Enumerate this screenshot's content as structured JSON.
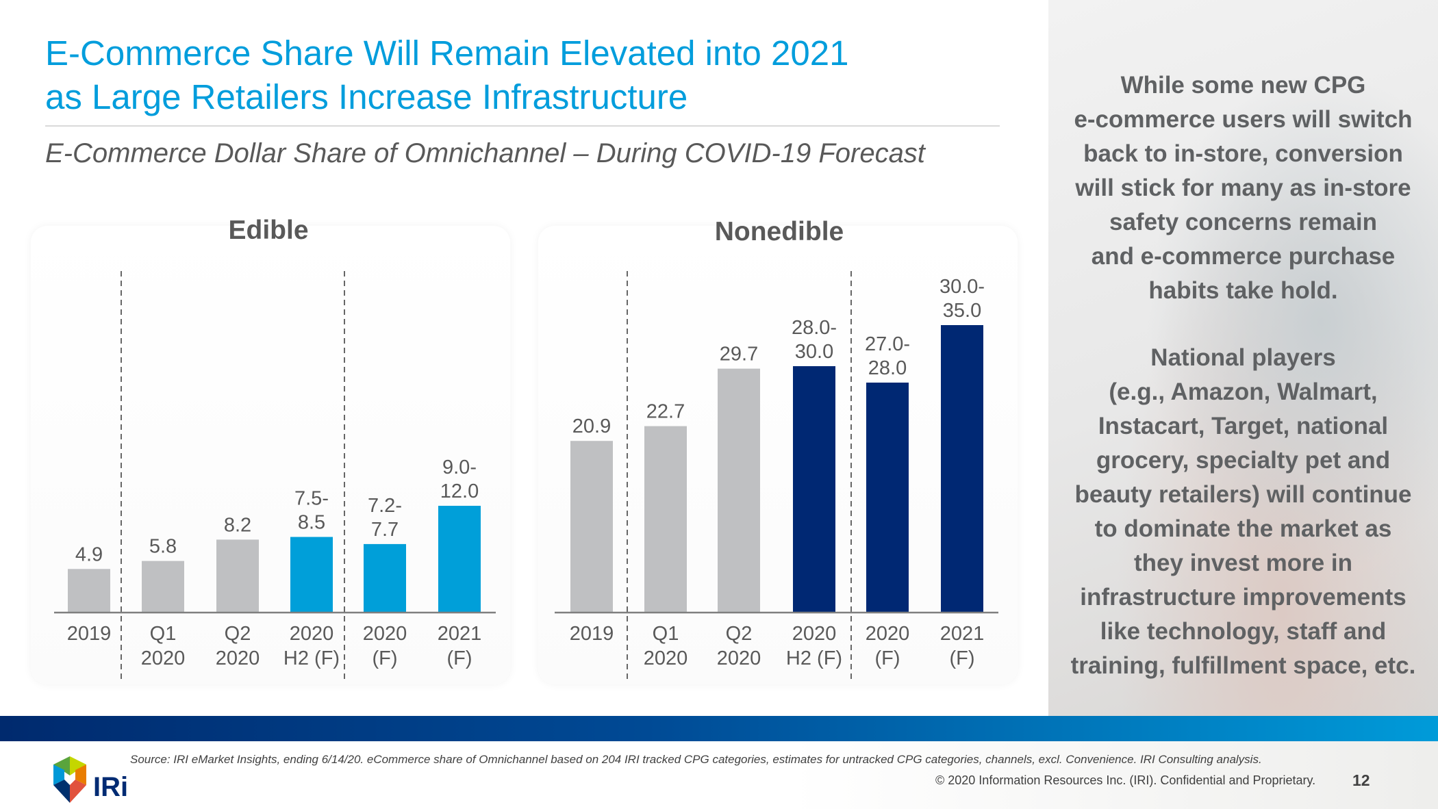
{
  "header": {
    "title_lines": [
      "E-Commerce Share Will Remain Elevated into 2021",
      "as Large Retailers Increase Infrastructure"
    ],
    "subtitle": "E-Commerce Dollar Share of Omnichannel – During COVID-19 Forecast"
  },
  "colors": {
    "accent": "#009ddc",
    "actual": "#bfc0c2",
    "edible_forecast": "#009fd9",
    "nonedible_forecast": "#002873",
    "text": "#595959"
  },
  "chart_data": [
    {
      "type": "bar",
      "title": "Edible",
      "categories": [
        [
          "2019"
        ],
        [
          "Q1",
          "2020"
        ],
        [
          "Q2",
          "2020"
        ],
        [
          "2020",
          "H2 (F)"
        ],
        [
          "2020",
          "(F)"
        ],
        [
          "2021",
          "(F)"
        ]
      ],
      "values": [
        4.9,
        5.8,
        8.2,
        8.5,
        7.7,
        12.0
      ],
      "ranges": [
        null,
        null,
        null,
        [
          7.5,
          8.5
        ],
        [
          7.2,
          7.7
        ],
        [
          9.0,
          12.0
        ]
      ],
      "labels": [
        [
          "4.9"
        ],
        [
          "5.8"
        ],
        [
          "8.2"
        ],
        [
          "7.5-",
          "8.5"
        ],
        [
          "7.2-",
          "7.7"
        ],
        [
          "9.0-",
          "12.0"
        ]
      ],
      "forecast": [
        false,
        false,
        false,
        true,
        true,
        true
      ],
      "dividers_after": [
        0,
        3
      ],
      "ylim": [
        0,
        25
      ]
    },
    {
      "type": "bar",
      "title": "Nonedible",
      "categories": [
        [
          "2019"
        ],
        [
          "Q1",
          "2020"
        ],
        [
          "Q2",
          "2020"
        ],
        [
          "2020",
          "H2 (F)"
        ],
        [
          "2020",
          "(F)"
        ],
        [
          "2021",
          "(F)"
        ]
      ],
      "values": [
        20.9,
        22.7,
        29.7,
        30.0,
        28.0,
        35.0
      ],
      "ranges": [
        null,
        null,
        null,
        [
          28.0,
          30.0
        ],
        [
          27.0,
          28.0
        ],
        [
          30.0,
          35.0
        ]
      ],
      "labels": [
        [
          "20.9"
        ],
        [
          "22.7"
        ],
        [
          "29.7"
        ],
        [
          "28.0-",
          "30.0"
        ],
        [
          "27.0-",
          "28.0"
        ],
        [
          "30.0-",
          "35.0"
        ]
      ],
      "forecast": [
        false,
        false,
        false,
        true,
        true,
        true
      ],
      "dividers_after": [
        0,
        3
      ],
      "ylim": [
        0,
        37
      ]
    }
  ],
  "side": {
    "para1": [
      "While some new CPG",
      "e-commerce users will switch",
      "back to in-store, conversion",
      "will stick for many as in-store",
      "safety concerns remain",
      "and e-commerce purchase",
      "habits take hold."
    ],
    "para2": [
      "National players",
      "(e.g., Amazon, Walmart,",
      "Instacart, Target, national",
      "grocery, specialty pet and",
      "beauty retailers) will continue",
      "to dominate the market as",
      "they invest more in",
      "infrastructure improvements",
      "like technology, staff and",
      "training, fulfillment space, etc."
    ]
  },
  "footer": {
    "source": "Source: IRI eMarket Insights, ending 6/14/20. eCommerce share of Omnichannel based on 204 IRI tracked CPG categories, estimates for untracked CPG categories, channels, excl. Convenience. IRI Consulting analysis.",
    "copyright": "© 2020 Information Resources Inc. (IRI). Confidential and Proprietary.",
    "page_number": "12",
    "logo_text": "IRi"
  }
}
